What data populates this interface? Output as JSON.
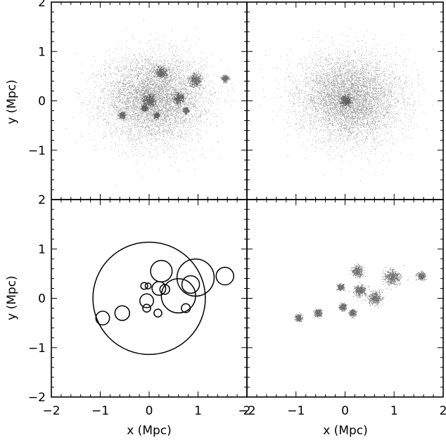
{
  "chart_data": {
    "type": "scatter",
    "layout": "2x2 panels, shared axes",
    "xlabel": "x (Mpc)",
    "ylabel": "y (Mpc)",
    "xlim": [
      -2,
      2
    ],
    "ylim": [
      -2,
      2
    ],
    "x_ticks": [
      "−2",
      "−1",
      "0",
      "1",
      "2"
    ],
    "y_ticks": [
      "−2",
      "−1",
      "0",
      "1",
      "2"
    ],
    "grid": false,
    "legend": "none",
    "point_color": "#555555",
    "panels": [
      {
        "id": "top-left",
        "type": "scatter",
        "description": "full particle distribution with substructure",
        "diffuse": {
          "cx": 0.1,
          "cy": 0.05,
          "sx": 0.5,
          "sy": 0.42
        },
        "clumps": [
          {
            "x": 0.0,
            "y": 0.0,
            "r": 0.12
          },
          {
            "x": 0.25,
            "y": 0.58,
            "r": 0.1
          },
          {
            "x": 0.95,
            "y": 0.42,
            "r": 0.12
          },
          {
            "x": 1.55,
            "y": 0.45,
            "r": 0.06
          },
          {
            "x": 0.6,
            "y": 0.05,
            "r": 0.1
          },
          {
            "x": -0.55,
            "y": -0.3,
            "r": 0.06
          },
          {
            "x": 0.15,
            "y": -0.3,
            "r": 0.05
          },
          {
            "x": -0.1,
            "y": -0.15,
            "r": 0.05
          },
          {
            "x": 0.75,
            "y": -0.2,
            "r": 0.05
          }
        ]
      },
      {
        "id": "top-right",
        "type": "scatter",
        "description": "smooth main halo component",
        "diffuse": {
          "cx": 0.1,
          "cy": 0.05,
          "sx": 0.5,
          "sy": 0.42
        },
        "clumps": [
          {
            "x": 0.0,
            "y": 0.0,
            "r": 0.1
          }
        ]
      },
      {
        "id": "bottom-left",
        "type": "circles",
        "description": "identified subhalo radii",
        "circles": [
          {
            "x": 0.0,
            "y": 0.0,
            "r": 1.15
          },
          {
            "x": 0.25,
            "y": 0.55,
            "r": 0.22
          },
          {
            "x": 0.95,
            "y": 0.42,
            "r": 0.38
          },
          {
            "x": 0.85,
            "y": 0.28,
            "r": 0.18
          },
          {
            "x": 1.55,
            "y": 0.45,
            "r": 0.18
          },
          {
            "x": 0.6,
            "y": 0.05,
            "r": 0.35
          },
          {
            "x": 0.2,
            "y": 0.2,
            "r": 0.14
          },
          {
            "x": 0.32,
            "y": 0.18,
            "r": 0.1
          },
          {
            "x": -0.1,
            "y": 0.25,
            "r": 0.07
          },
          {
            "x": -0.02,
            "y": 0.25,
            "r": 0.06
          },
          {
            "x": -0.05,
            "y": -0.05,
            "r": 0.14
          },
          {
            "x": -0.05,
            "y": -0.2,
            "r": 0.08
          },
          {
            "x": 0.18,
            "y": -0.3,
            "r": 0.08
          },
          {
            "x": 0.75,
            "y": -0.2,
            "r": 0.09
          },
          {
            "x": -0.55,
            "y": -0.3,
            "r": 0.15
          },
          {
            "x": -0.95,
            "y": -0.4,
            "r": 0.14
          }
        ]
      },
      {
        "id": "bottom-right",
        "type": "scatter",
        "description": "substructure particles only",
        "clumps": [
          {
            "x": 0.25,
            "y": 0.55,
            "r": 0.1
          },
          {
            "x": 0.95,
            "y": 0.42,
            "r": 0.14
          },
          {
            "x": 1.55,
            "y": 0.45,
            "r": 0.07
          },
          {
            "x": 0.6,
            "y": 0.0,
            "r": 0.12
          },
          {
            "x": -0.55,
            "y": -0.3,
            "r": 0.07
          },
          {
            "x": 0.15,
            "y": -0.3,
            "r": 0.06
          },
          {
            "x": -0.05,
            "y": -0.18,
            "r": 0.06
          },
          {
            "x": 0.3,
            "y": 0.15,
            "r": 0.1
          },
          {
            "x": -0.1,
            "y": 0.22,
            "r": 0.06
          },
          {
            "x": -0.95,
            "y": -0.4,
            "r": 0.06
          }
        ]
      }
    ]
  }
}
